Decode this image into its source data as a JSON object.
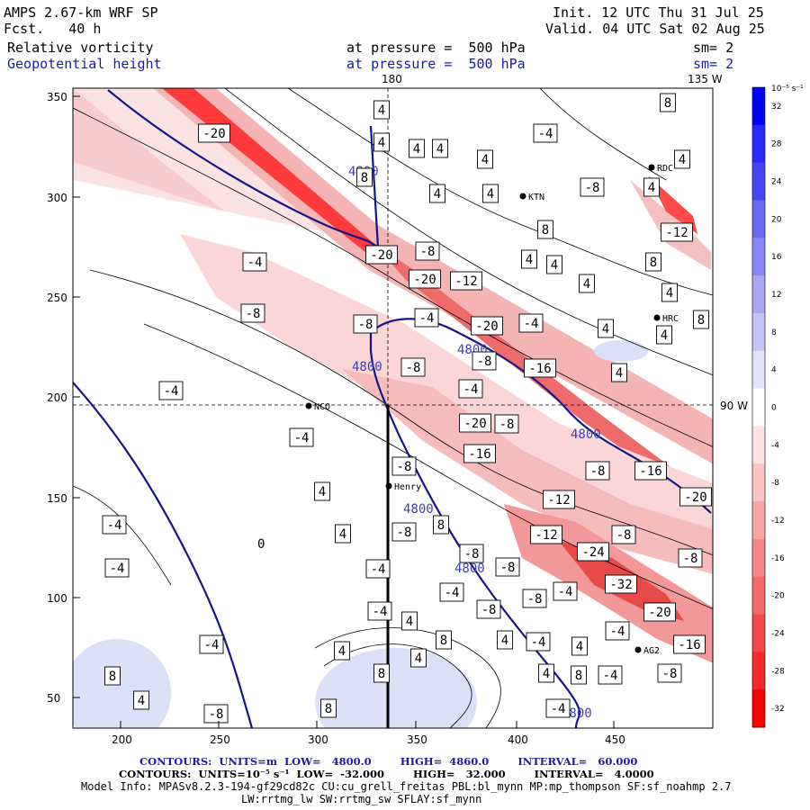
{
  "header": {
    "model_title": "AMPS 2.67-km WRF SP",
    "init": "Init. 12 UTC Thu 31 Jul 25",
    "forecast": "Fcst.   40 h",
    "valid": "Valid. 04 UTC Sat 02 Aug 25",
    "field1_name": "Relative vorticity",
    "field1_level": "at pressure =  500 hPa",
    "field1_sm": "sm= 2",
    "field2_name": "Geopotential height",
    "field2_level": "at pressure =  500 hPa",
    "field2_sm": "sm= 2"
  },
  "map": {
    "meridian_top": "180",
    "meridian_topright": "135 W",
    "meridian_right": "90 W",
    "x_ticks": [
      "200",
      "250",
      "300",
      "350",
      "400",
      "450"
    ],
    "y_ticks": [
      "350",
      "300",
      "250",
      "200",
      "150",
      "100",
      "50"
    ],
    "stations": [
      {
        "id": "NCO",
        "label": "NCO"
      },
      {
        "id": "Henry",
        "label": "Henry"
      },
      {
        "id": "KTN",
        "label": "KTN"
      },
      {
        "id": "RDC",
        "label": "RDC"
      },
      {
        "id": "HRC",
        "label": "HRC"
      },
      {
        "id": "AG2",
        "label": "AG2"
      }
    ],
    "height_contour_label": "4800",
    "vorticity_labels": [
      "-4",
      "-8",
      "-12",
      "-16",
      "-20",
      "-24",
      "-32",
      "4",
      "8",
      "0"
    ],
    "colors": {
      "height_contour": "#15158a",
      "cross_section": "#000000",
      "positive_max": "#0000ff",
      "negative_max": "#ff0000"
    }
  },
  "colorbar": {
    "unit_label": "10⁻⁵ s⁻¹",
    "ticks": [
      "32",
      "28",
      "24",
      "20",
      "16",
      "12",
      "8",
      "4",
      "0",
      "-4",
      "-8",
      "-12",
      "-16",
      "-20",
      "-24",
      "-28",
      "-32"
    ]
  },
  "footer": {
    "line1": "CONTOURS:  UNITS=m  LOW=   4800.0        HIGH=  4860.0        INTERVAL=   60.000",
    "line2": "CONTOURS:  UNITS=10⁻⁵ s⁻¹  LOW=  -32.000        HIGH=   32.000        INTERVAL=   4.0000",
    "line3": "Model Info: MPASv8.2.3-194-gf29cd82c CU:cu_grell_freitas PBL:bl_mynn MP:mp_thompson SF:sf_noahmp 2.7",
    "line4": "LW:rrtmg_lw SW:rrtmg_sw SFLAY:sf_mynn"
  }
}
